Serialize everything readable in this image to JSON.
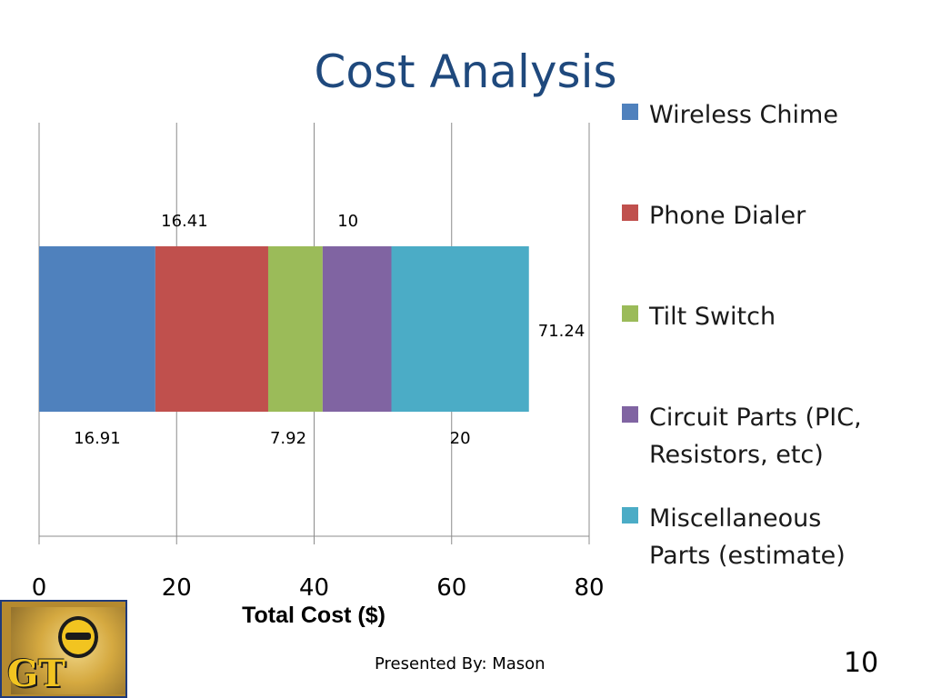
{
  "slide": {
    "title": "Cost Analysis",
    "footer": "Presented By: Mason",
    "page_number": "10"
  },
  "logo": {
    "text": "GT"
  },
  "chart_data": {
    "type": "bar",
    "orientation": "horizontal",
    "stacked": true,
    "categories": [
      ""
    ],
    "series": [
      {
        "name": "Wireless Chime",
        "values": [
          16.91
        ],
        "color": "#4f81bd",
        "data_label": "16.91"
      },
      {
        "name": "Phone Dialer",
        "values": [
          16.41
        ],
        "color": "#c0504d",
        "data_label": "16.41"
      },
      {
        "name": "Tilt Switch",
        "values": [
          7.92
        ],
        "color": "#9bbb59",
        "data_label": "7.92"
      },
      {
        "name": "Circuit Parts (PIC, Resistors, etc)",
        "values": [
          10
        ],
        "color": "#8064a2",
        "data_label": "10"
      },
      {
        "name": "Miscellaneous Parts (estimate)",
        "values": [
          20
        ],
        "color": "#4bacc6",
        "data_label": "20"
      }
    ],
    "total_label": "71.24",
    "xlabel": "Total Cost ($)",
    "xlim": [
      0,
      80
    ],
    "xticks": [
      "0",
      "20",
      "40",
      "60",
      "80"
    ],
    "grid": true,
    "legend_position": "right"
  }
}
